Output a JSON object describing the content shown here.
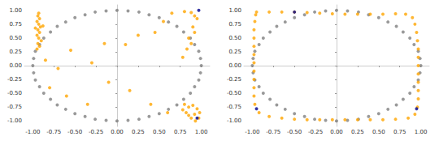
{
  "chart_data": [
    {
      "type": "scatter",
      "xlim": [
        -1.1,
        1.1
      ],
      "ylim": [
        -1.1,
        1.1
      ],
      "xticks": [
        {
          "value": -1,
          "label": "-1.00"
        },
        -0.75,
        {
          "value": -0.5,
          "label": "-0.50"
        },
        -0.25,
        {
          "value": 0,
          "label": "0.00"
        },
        0.25,
        {
          "value": 0.5,
          "label": "0.50"
        },
        0.75,
        {
          "value": 1,
          "label": "1.00"
        }
      ],
      "yticks": [
        {
          "value": -1,
          "label": "-1.00"
        },
        -0.75,
        {
          "value": -0.5,
          "label": "-0.50"
        },
        -0.25,
        {
          "value": 0,
          "label": "0.00"
        },
        0.25,
        {
          "value": 0.5,
          "label": "0.50"
        },
        0.75,
        {
          "value": 1,
          "label": "1.00"
        }
      ],
      "grid": false,
      "series": [
        {
          "color": "#808080",
          "values": [
            [
              1,
              0
            ],
            [
              0.99,
              0.13
            ],
            [
              0.97,
              0.26
            ],
            [
              0.92,
              0.38
            ],
            [
              0.87,
              0.5
            ],
            [
              0.79,
              0.61
            ],
            [
              0.71,
              0.71
            ],
            [
              0.61,
              0.79
            ],
            [
              0.5,
              0.87
            ],
            [
              0.38,
              0.92
            ],
            [
              0.26,
              0.97
            ],
            [
              0.13,
              0.99
            ],
            [
              0,
              1
            ],
            [
              -0.13,
              0.99
            ],
            [
              -0.26,
              0.97
            ],
            [
              -0.38,
              0.92
            ],
            [
              -0.5,
              0.87
            ],
            [
              -0.61,
              0.79
            ],
            [
              -0.71,
              0.71
            ],
            [
              -0.79,
              0.61
            ],
            [
              -0.87,
              0.5
            ],
            [
              -0.92,
              0.38
            ],
            [
              -0.97,
              0.26
            ],
            [
              -0.99,
              0.13
            ],
            [
              -1,
              0
            ],
            [
              -0.99,
              -0.13
            ],
            [
              -0.97,
              -0.26
            ],
            [
              -0.92,
              -0.38
            ],
            [
              -0.87,
              -0.5
            ],
            [
              -0.79,
              -0.61
            ],
            [
              -0.71,
              -0.71
            ],
            [
              -0.61,
              -0.79
            ],
            [
              -0.5,
              -0.87
            ],
            [
              -0.38,
              -0.92
            ],
            [
              -0.26,
              -0.97
            ],
            [
              -0.13,
              -0.99
            ],
            [
              0,
              -1
            ],
            [
              0.13,
              -0.99
            ],
            [
              0.26,
              -0.97
            ],
            [
              0.38,
              -0.92
            ],
            [
              0.5,
              -0.87
            ],
            [
              0.61,
              -0.79
            ],
            [
              0.71,
              -0.71
            ],
            [
              0.79,
              -0.61
            ],
            [
              0.87,
              -0.5
            ],
            [
              0.92,
              -0.38
            ],
            [
              0.97,
              -0.26
            ],
            [
              0.99,
              -0.13
            ]
          ]
        },
        {
          "color": "#ffa500",
          "values": [
            [
              -0.93,
              0.95
            ],
            [
              -0.94,
              0.9
            ],
            [
              -0.92,
              0.85
            ],
            [
              -0.95,
              0.8
            ],
            [
              -0.93,
              0.75
            ],
            [
              -0.91,
              0.7
            ],
            [
              -0.94,
              0.65
            ],
            [
              -0.92,
              0.6
            ],
            [
              -0.95,
              0.55
            ],
            [
              -0.93,
              0.5
            ],
            [
              -0.9,
              0.45
            ],
            [
              -0.94,
              0.4
            ],
            [
              -0.92,
              0.35
            ],
            [
              -0.95,
              0.3
            ],
            [
              -0.88,
              0.72
            ],
            [
              -0.97,
              0.68
            ],
            [
              -0.85,
              0.1
            ],
            [
              -0.7,
              -0.05
            ],
            [
              -0.8,
              -0.4
            ],
            [
              -0.6,
              -0.55
            ],
            [
              -0.55,
              0.28
            ],
            [
              -0.3,
              0.05
            ],
            [
              -0.15,
              0.4
            ],
            [
              0.1,
              0.38
            ],
            [
              0.25,
              0.55
            ],
            [
              0.45,
              0.6
            ],
            [
              -0.35,
              -0.7
            ],
            [
              -0.1,
              -0.3
            ],
            [
              0.15,
              -0.45
            ],
            [
              0.4,
              -0.7
            ],
            [
              0.6,
              -0.85
            ],
            [
              0.8,
              0.98
            ],
            [
              0.88,
              0.96
            ],
            [
              0.92,
              0.9
            ],
            [
              0.95,
              0.85
            ],
            [
              0.9,
              0.7
            ],
            [
              0.92,
              0.6
            ],
            [
              0.85,
              0.5
            ],
            [
              0.88,
              0.4
            ],
            [
              0.83,
              0.3
            ],
            [
              0.78,
              0.15
            ],
            [
              0.55,
              0.8
            ],
            [
              0.65,
              0.95
            ],
            [
              0.8,
              -0.7
            ],
            [
              0.85,
              -0.75
            ],
            [
              0.9,
              -0.72
            ],
            [
              0.95,
              -0.78
            ],
            [
              0.98,
              -0.85
            ],
            [
              0.92,
              -0.88
            ],
            [
              0.85,
              -0.9
            ],
            [
              0.88,
              -0.95
            ],
            [
              0.93,
              -1.0
            ],
            [
              0.97,
              -0.95
            ],
            [
              0.82,
              -0.85
            ],
            [
              0.78,
              -0.8
            ]
          ]
        },
        {
          "color": "#00008b",
          "values": [
            [
              0.97,
              1.0
            ],
            [
              0.95,
              -0.95
            ]
          ]
        }
      ]
    },
    {
      "type": "scatter",
      "xlim": [
        -1.1,
        1.1
      ],
      "ylim": [
        -1.1,
        1.1
      ],
      "xticks": [
        {
          "value": -1,
          "label": "-1.00"
        },
        -0.75,
        {
          "value": -0.5,
          "label": "-0.50"
        },
        -0.25,
        {
          "value": 0,
          "label": "0.00"
        },
        0.25,
        {
          "value": 0.5,
          "label": "0.50"
        },
        0.75,
        {
          "value": 1,
          "label": "1.00"
        }
      ],
      "yticks": [
        {
          "value": -1,
          "label": "-1.00"
        },
        -0.75,
        {
          "value": -0.5,
          "label": "-0.50"
        },
        -0.25,
        {
          "value": 0,
          "label": "0.00"
        },
        0.25,
        {
          "value": 0.5,
          "label": "0.50"
        },
        0.75,
        {
          "value": 1,
          "label": "1.00"
        }
      ],
      "grid": false,
      "series": [
        {
          "color": "#808080",
          "values": [
            [
              1,
              0
            ],
            [
              0.99,
              0.13
            ],
            [
              0.97,
              0.26
            ],
            [
              0.92,
              0.38
            ],
            [
              0.87,
              0.5
            ],
            [
              0.79,
              0.61
            ],
            [
              0.71,
              0.71
            ],
            [
              0.61,
              0.79
            ],
            [
              0.5,
              0.87
            ],
            [
              0.38,
              0.92
            ],
            [
              0.26,
              0.97
            ],
            [
              0.13,
              0.99
            ],
            [
              0,
              1
            ],
            [
              -0.13,
              0.99
            ],
            [
              -0.26,
              0.97
            ],
            [
              -0.38,
              0.92
            ],
            [
              -0.5,
              0.87
            ],
            [
              -0.61,
              0.79
            ],
            [
              -0.71,
              0.71
            ],
            [
              -0.79,
              0.61
            ],
            [
              -0.87,
              0.5
            ],
            [
              -0.92,
              0.38
            ],
            [
              -0.97,
              0.26
            ],
            [
              -0.99,
              0.13
            ],
            [
              -1,
              0
            ],
            [
              -0.99,
              -0.13
            ],
            [
              -0.97,
              -0.26
            ],
            [
              -0.92,
              -0.38
            ],
            [
              -0.87,
              -0.5
            ],
            [
              -0.79,
              -0.61
            ],
            [
              -0.71,
              -0.71
            ],
            [
              -0.61,
              -0.79
            ],
            [
              -0.5,
              -0.87
            ],
            [
              -0.38,
              -0.92
            ],
            [
              -0.26,
              -0.97
            ],
            [
              -0.13,
              -0.99
            ],
            [
              0,
              -1
            ],
            [
              0.13,
              -0.99
            ],
            [
              0.26,
              -0.97
            ],
            [
              0.38,
              -0.92
            ],
            [
              0.5,
              -0.87
            ],
            [
              0.61,
              -0.79
            ],
            [
              0.71,
              -0.71
            ],
            [
              0.79,
              -0.61
            ],
            [
              0.87,
              -0.5
            ],
            [
              0.92,
              -0.38
            ],
            [
              0.97,
              -0.26
            ],
            [
              0.99,
              -0.13
            ]
          ]
        },
        {
          "color": "#ffa500",
          "values": [
            [
              -0.95,
              0.97
            ],
            [
              -0.8,
              0.97
            ],
            [
              -0.65,
              0.97
            ],
            [
              -0.5,
              0.97
            ],
            [
              -0.35,
              0.96
            ],
            [
              -0.2,
              0.95
            ],
            [
              -0.05,
              0.94
            ],
            [
              0.1,
              0.93
            ],
            [
              0.25,
              0.93
            ],
            [
              0.4,
              0.93
            ],
            [
              0.55,
              0.93
            ],
            [
              0.7,
              0.94
            ],
            [
              0.82,
              0.93
            ],
            [
              0.9,
              0.87
            ],
            [
              0.93,
              0.75
            ],
            [
              0.95,
              0.6
            ],
            [
              0.96,
              0.45
            ],
            [
              0.97,
              0.3
            ],
            [
              0.97,
              0.15
            ],
            [
              0.97,
              0
            ],
            [
              0.97,
              -0.15
            ],
            [
              0.97,
              -0.3
            ],
            [
              0.97,
              -0.45
            ],
            [
              0.97,
              -0.6
            ],
            [
              0.96,
              -0.75
            ],
            [
              0.93,
              -0.88
            ],
            [
              0.85,
              -0.95
            ],
            [
              0.7,
              -0.97
            ],
            [
              0.55,
              -0.98
            ],
            [
              0.4,
              -0.98
            ],
            [
              0.25,
              -0.98
            ],
            [
              0.1,
              -0.98
            ],
            [
              -0.05,
              -0.98
            ],
            [
              -0.2,
              -0.98
            ],
            [
              -0.35,
              -0.98
            ],
            [
              -0.5,
              -0.97
            ],
            [
              -0.65,
              -0.95
            ],
            [
              -0.8,
              -0.92
            ],
            [
              -0.92,
              -0.85
            ],
            [
              -0.97,
              -0.7
            ],
            [
              -0.98,
              -0.55
            ],
            [
              -0.98,
              -0.4
            ],
            [
              -0.98,
              -0.25
            ],
            [
              -0.98,
              -0.1
            ],
            [
              -0.98,
              0.05
            ],
            [
              -0.98,
              0.2
            ],
            [
              -0.98,
              0.35
            ],
            [
              -0.98,
              0.5
            ],
            [
              -0.98,
              0.65
            ],
            [
              -0.97,
              0.8
            ],
            [
              -0.96,
              0.92
            ]
          ]
        },
        {
          "color": "#00008b",
          "values": [
            [
              -0.5,
              0.97
            ],
            [
              -0.95,
              -0.78
            ],
            [
              0.95,
              -0.78
            ]
          ]
        }
      ]
    }
  ]
}
